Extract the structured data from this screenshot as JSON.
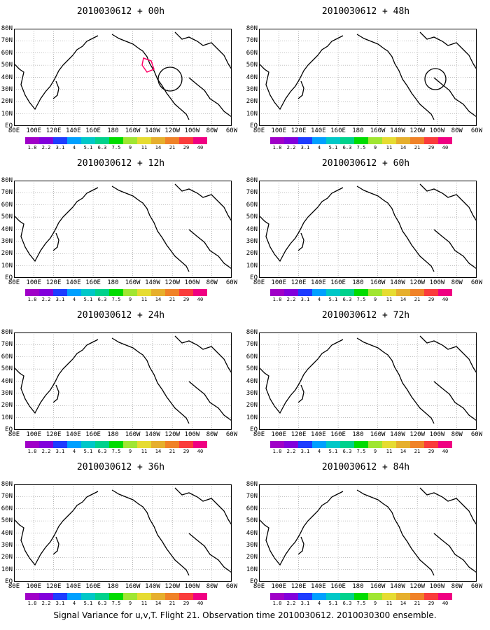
{
  "chart_data": [
    {
      "type": "heatmap",
      "title": "2010030612 + 00h"
    },
    {
      "type": "heatmap",
      "title": "2010030612 + 48h"
    },
    {
      "type": "heatmap",
      "title": "2010030612 + 12h"
    },
    {
      "type": "heatmap",
      "title": "2010030612 + 60h"
    },
    {
      "type": "heatmap",
      "title": "2010030612 + 24h"
    },
    {
      "type": "heatmap",
      "title": "2010030612 + 72h"
    },
    {
      "type": "heatmap",
      "title": "2010030612 + 36h"
    },
    {
      "type": "heatmap",
      "title": "2010030612 + 84h"
    }
  ],
  "lat_labels": [
    "80N",
    "70N",
    "60N",
    "50N",
    "40N",
    "30N",
    "20N",
    "10N",
    "EQ"
  ],
  "lon_labels": [
    "80E",
    "100E",
    "120E",
    "140E",
    "160E",
    "180",
    "160W",
    "140W",
    "120W",
    "100W",
    "80W",
    "60W"
  ],
  "colorbar": {
    "levels": [
      "1.8",
      "2.2",
      "3.1",
      "4",
      "5.1",
      "6.3",
      "7.5",
      "9",
      "11",
      "14",
      "21",
      "29",
      "40"
    ],
    "colors": [
      "#a000c8",
      "#8200dc",
      "#1e3cff",
      "#00a0ff",
      "#00c8c8",
      "#00d28c",
      "#00dc00",
      "#a0e632",
      "#e6dc32",
      "#e6af2d",
      "#f08228",
      "#fa3c3c",
      "#f00082"
    ]
  },
  "caption": "Signal Variance for u,v,T. Flight 21. Observation time 2010030612. 2010030300 ensemble."
}
